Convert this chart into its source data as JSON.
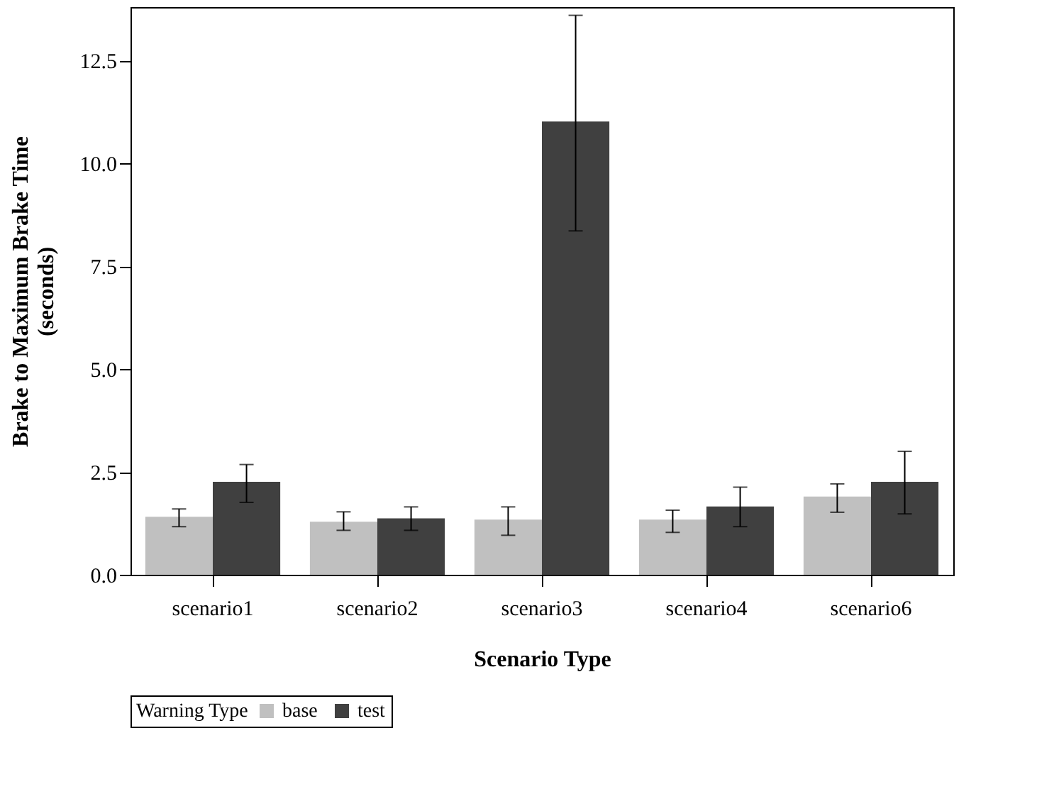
{
  "chart_data": {
    "type": "bar",
    "xlabel": "Scenario Type",
    "ylabel": "Brake to Maximum Brake Time\n(seconds)",
    "legend_title": "Warning Type",
    "categories": [
      "scenario1",
      "scenario2",
      "scenario3",
      "scenario4",
      "scenario6"
    ],
    "series": [
      {
        "name": "base",
        "color": "#c0c0c0",
        "values": [
          1.41,
          1.29,
          1.34,
          1.34,
          1.9
        ],
        "errors": [
          [
            1.17,
            1.6
          ],
          [
            1.08,
            1.53
          ],
          [
            0.96,
            1.65
          ],
          [
            1.03,
            1.57
          ],
          [
            1.52,
            2.21
          ]
        ]
      },
      {
        "name": "test",
        "color": "#404040",
        "values": [
          2.26,
          1.37,
          11.02,
          1.66,
          2.26
        ],
        "errors": [
          [
            1.76,
            2.68
          ],
          [
            1.08,
            1.65
          ],
          [
            8.36,
            13.6
          ],
          [
            1.17,
            2.13
          ],
          [
            1.48,
            3.0
          ]
        ]
      }
    ],
    "ylim": [
      0,
      13.8
    ],
    "yticks": [
      {
        "value": 0,
        "label": "0.0"
      },
      2.5,
      {
        "value": 5,
        "label": "5.0"
      },
      7.5,
      {
        "value": 10,
        "label": "10.0"
      },
      12.5
    ],
    "grid": false,
    "legend": "bottom"
  }
}
